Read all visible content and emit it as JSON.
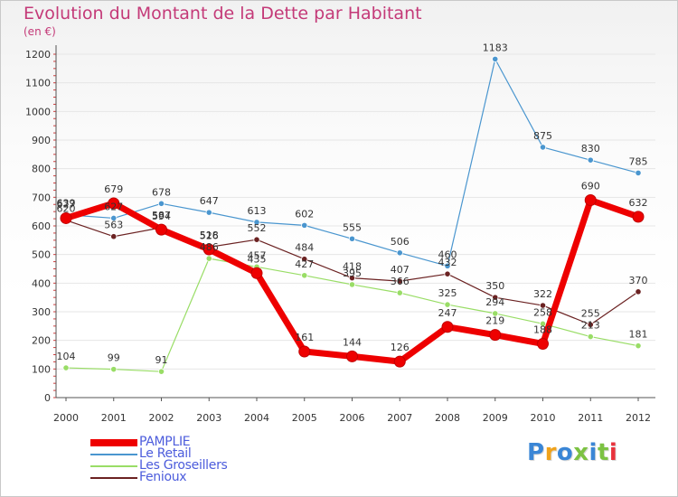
{
  "chart": {
    "title": "Evolution du Montant de la Dette par Habitant",
    "subtitle": "(en €)",
    "brand": "Proxiti"
  },
  "colors": {
    "title": "#c43a78",
    "legend_text": "#4c5cdc",
    "axis_text": "#333333",
    "grid": "#e6e6e6",
    "logo": [
      "#3a86d6",
      "#f0a21a",
      "#3a86d6",
      "#7cc242",
      "#3a86d6",
      "#7cc242",
      "#e8323c"
    ]
  },
  "chart_data": {
    "type": "line",
    "title": "Evolution du Montant de la Dette par Habitant",
    "ylabel": "(en €)",
    "xlabel": "",
    "x": [
      2000,
      2001,
      2002,
      2003,
      2004,
      2005,
      2006,
      2007,
      2008,
      2009,
      2010,
      2011,
      2012
    ],
    "ylim": [
      0,
      1200
    ],
    "yticks": [
      0,
      100,
      200,
      300,
      400,
      500,
      600,
      700,
      800,
      900,
      1000,
      1100,
      1200
    ],
    "grid": "horizontal",
    "legend_position": "bottom-left",
    "series": [
      {
        "name": "PAMPLIE",
        "color": "#ee0000",
        "values": [
          627,
          679,
          587,
          518,
          435,
          161,
          144,
          126,
          247,
          219,
          188,
          690,
          632
        ]
      },
      {
        "name": "Le Retail",
        "color": "#4a96cf",
        "values": [
          639,
          627,
          678,
          647,
          613,
          602,
          555,
          506,
          460,
          1183,
          875,
          830,
          785
        ]
      },
      {
        "name": "Les Groseillers",
        "color": "#99dd66",
        "values": [
          104,
          99,
          91,
          486,
          457,
          427,
          395,
          366,
          325,
          294,
          258,
          213,
          181
        ]
      },
      {
        "name": "Fenioux",
        "color": "#6b2222",
        "values": [
          620,
          563,
          594,
          526,
          552,
          484,
          418,
          407,
          432,
          350,
          322,
          255,
          370
        ]
      }
    ]
  }
}
